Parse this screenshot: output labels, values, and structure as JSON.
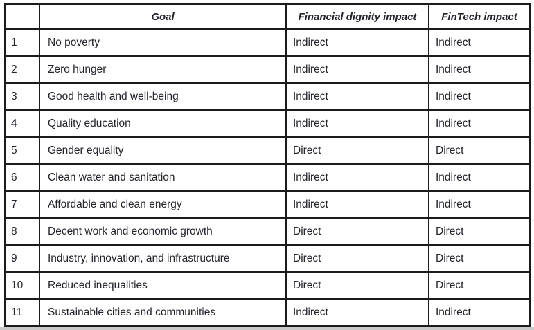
{
  "table": {
    "headers": {
      "index": "",
      "goal": "Goal",
      "financial_dignity": "Financial dignity impact",
      "fintech": "FinTech impact"
    },
    "rows": [
      {
        "num": "1",
        "goal": "No poverty",
        "fd": "Indirect",
        "ft": "Indirect"
      },
      {
        "num": "2",
        "goal": "Zero hunger",
        "fd": "Indirect",
        "ft": "Indirect"
      },
      {
        "num": "3",
        "goal": "Good health and well-being",
        "fd": "Indirect",
        "ft": "Indirect"
      },
      {
        "num": "4",
        "goal": "Quality education",
        "fd": "Indirect",
        "ft": "Indirect"
      },
      {
        "num": "5",
        "goal": "Gender equality",
        "fd": "Direct",
        "ft": "Direct"
      },
      {
        "num": "6",
        "goal": "Clean water and sanitation",
        "fd": "Indirect",
        "ft": "Indirect"
      },
      {
        "num": "7",
        "goal": "Affordable and clean energy",
        "fd": "Indirect",
        "ft": "Indirect"
      },
      {
        "num": "8",
        "goal": "Decent work and economic growth",
        "fd": "Direct",
        "ft": "Direct"
      },
      {
        "num": "9",
        "goal": "Industry, innovation, and infrastructure",
        "fd": "Direct",
        "ft": "Direct"
      },
      {
        "num": "10",
        "goal": "Reduced inequalities",
        "fd": "Direct",
        "ft": "Direct"
      },
      {
        "num": "11",
        "goal": "Sustainable cities and communities",
        "fd": "Indirect",
        "ft": "Indirect"
      }
    ],
    "colors": {
      "border": "#1b1b1b",
      "text": "#24242d",
      "background": "#ffffff",
      "bottom_shadow": "#c9c9c9"
    }
  }
}
